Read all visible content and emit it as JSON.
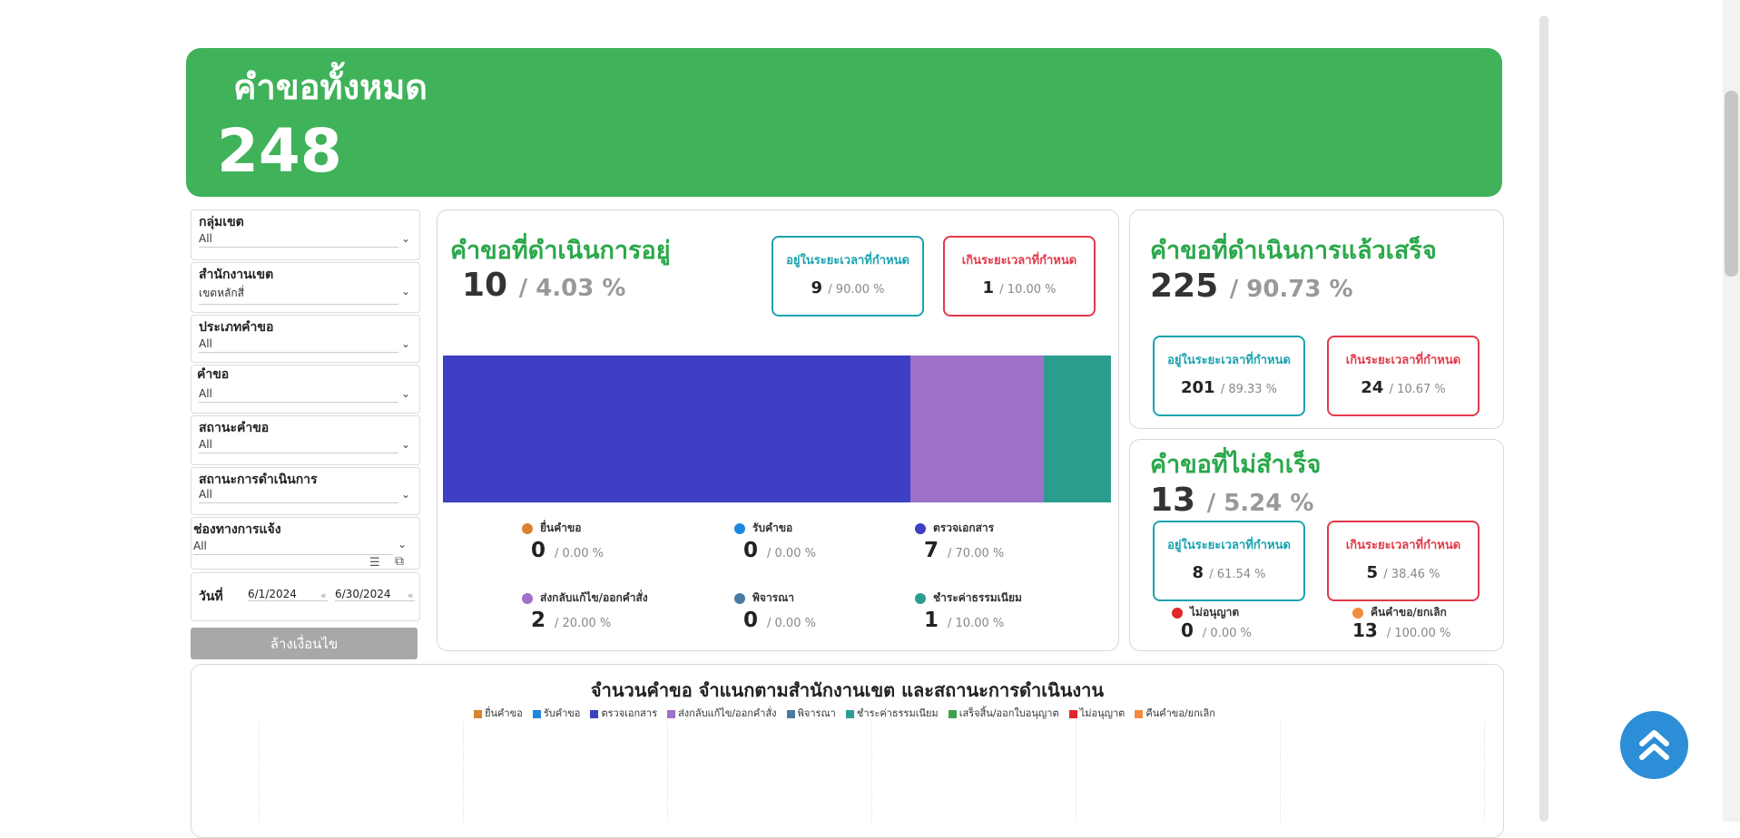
{
  "total": {
    "title": "คำขอทั้งหมด",
    "value": "248"
  },
  "filters": [
    {
      "label": "กลุ่มเขต",
      "value": "All"
    },
    {
      "label": "สำนักงานเขต",
      "value": "เขตหลักสี่"
    },
    {
      "label": "ประเภทคำขอ",
      "value": "All"
    },
    {
      "label": "คำขอ",
      "value": "All"
    },
    {
      "label": "สถานะคำขอ",
      "value": "All"
    },
    {
      "label": "สถานะการดำเนินการ",
      "value": "All"
    },
    {
      "label": "ช่องทางการแจ้ง",
      "value": "All"
    }
  ],
  "date_filter": {
    "label": "วันที่",
    "start": "6/1/2024",
    "end": "6/30/2024"
  },
  "clear_button": "ล้างเงื่อนไข",
  "in_progress": {
    "title": "คำขอที่ดำเนินการอยู่",
    "value": "10",
    "pct": "/ 4.03 %",
    "within": {
      "label": "อยู่ในระยะเวลาที่กำหนด",
      "value": "9",
      "pct": "/ 90.00 %"
    },
    "over": {
      "label": "เกินระยะเวลาที่กำหนด",
      "value": "1",
      "pct": "/ 10.00 %"
    },
    "bar": [
      {
        "name": "ตรวจเอกสาร",
        "fraction": 0.7,
        "color": "#3d3fc4"
      },
      {
        "name": "ส่งกลับแก้ไข/ออกคำสั่ง",
        "fraction": 0.2,
        "color": "#9d70c9"
      },
      {
        "name": "ชำระค่าธรรมเนียม",
        "fraction": 0.1,
        "color": "#2a9d8f"
      }
    ],
    "legend": [
      {
        "name": "ยื่นคำขอ",
        "value": "0",
        "pct": "/ 0.00 %",
        "color": "#d9832f"
      },
      {
        "name": "รับคำขอ",
        "value": "0",
        "pct": "/ 0.00 %",
        "color": "#1f86e0"
      },
      {
        "name": "ตรวจเอกสาร",
        "value": "7",
        "pct": "/ 70.00 %",
        "color": "#3d3fc4"
      },
      {
        "name": "ส่งกลับแก้ไข/ออกคำสั่ง",
        "value": "2",
        "pct": "/ 20.00 %",
        "color": "#9d70c9"
      },
      {
        "name": "พิจารณา",
        "value": "0",
        "pct": "/ 0.00 %",
        "color": "#4a7aa0"
      },
      {
        "name": "ชำระค่าธรรมเนียม",
        "value": "1",
        "pct": "/ 10.00 %",
        "color": "#2a9d8f"
      }
    ]
  },
  "completed": {
    "title": "คำขอที่ดำเนินการแล้วเสร็จ",
    "value": "225",
    "pct": "/ 90.73 %",
    "within": {
      "label": "อยู่ในระยะเวลาที่กำหนด",
      "value": "201",
      "pct": "/ 89.33 %"
    },
    "over": {
      "label": "เกินระยะเวลาที่กำหนด",
      "value": "24",
      "pct": "/ 10.67 %"
    }
  },
  "failed": {
    "title": "คำขอที่ไม่สำเร็จ",
    "value": "13",
    "pct": "/ 5.24 %",
    "within": {
      "label": "อยู่ในระยะเวลาที่กำหนด",
      "value": "8",
      "pct": "/ 61.54 %"
    },
    "over": {
      "label": "เกินระยะเวลาที่กำหนด",
      "value": "5",
      "pct": "/ 38.46 %"
    },
    "legend": [
      {
        "name": "ไม่อนุญาต",
        "value": "0",
        "pct": "/ 0.00 %",
        "color": "#e02626"
      },
      {
        "name": "คืนคำขอ/ยกเลิก",
        "value": "13",
        "pct": "/ 100.00 %",
        "color": "#f38b3c"
      }
    ]
  },
  "chart": {
    "title": "จำนวนคำขอ  จำแนกตามสำนักงานเขต และสถานะการดำเนินงาน",
    "legend": [
      {
        "name": "ยื่นคำขอ",
        "color": "#d9832f"
      },
      {
        "name": "รับคำขอ",
        "color": "#1f86e0"
      },
      {
        "name": "ตรวจเอกสาร",
        "color": "#3d3fc4"
      },
      {
        "name": "ส่งกลับแก้ไข/ออกคำสั่ง",
        "color": "#9d70c9"
      },
      {
        "name": "พิจารณา",
        "color": "#4a7aa0"
      },
      {
        "name": "ชำระค่าธรรมเนียม",
        "color": "#2a9d8f"
      },
      {
        "name": "เสร็จสิ้น/ออกใบอนุญาต",
        "color": "#3fa34d"
      },
      {
        "name": "ไม่อนุญาต",
        "color": "#e02626"
      },
      {
        "name": "คืนคำขอ/ยกเลิก",
        "color": "#f38b3c"
      }
    ]
  }
}
